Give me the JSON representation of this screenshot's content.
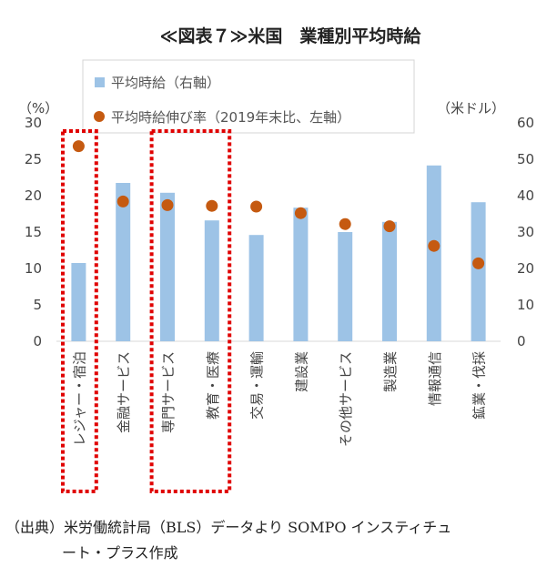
{
  "chart_data": {
    "type": "bar",
    "title": "≪図表７≫米国　業種別平均時給",
    "categories": [
      "レジャー・宿泊",
      "金融サービス",
      "専門サービス",
      "教育・医療",
      "交易・運輸",
      "建設業",
      "その他サービス",
      "製造業",
      "情報通信",
      "鉱業・伐採"
    ],
    "series": [
      {
        "name": "平均時給（右軸）",
        "kind": "bar",
        "axis": "right",
        "color": "#9DC3E6",
        "values": [
          21.5,
          43.5,
          40.8,
          33.2,
          29.2,
          36.7,
          30.0,
          32.8,
          48.3,
          38.2
        ]
      },
      {
        "name": "平均時給伸び率（2019年末比、左軸）",
        "kind": "scatter",
        "axis": "left",
        "color": "#C55A11",
        "values": [
          26.8,
          19.2,
          18.7,
          18.6,
          18.5,
          17.6,
          16.1,
          15.8,
          13.1,
          10.7
        ]
      }
    ],
    "left_axis": {
      "unit": "（%）",
      "ylim": [
        0,
        30
      ],
      "ticks": [
        "0",
        "5",
        "10",
        "15",
        "20",
        "25",
        "30"
      ]
    },
    "right_axis": {
      "unit": "（米ドル）",
      "ylim": [
        0,
        60
      ],
      "ticks": [
        "0",
        "10",
        "20",
        "30",
        "40",
        "50",
        "60"
      ]
    },
    "grid": false,
    "legend_position": "top-left",
    "highlight_groups": [
      [
        0
      ],
      [
        2,
        3
      ]
    ],
    "highlight_color": "#E00000"
  },
  "source": {
    "label": "（出典）",
    "line1": "米労働統計局（BLS）データより SOMPO インスティチュ",
    "line2": "ート・プラス作成"
  }
}
